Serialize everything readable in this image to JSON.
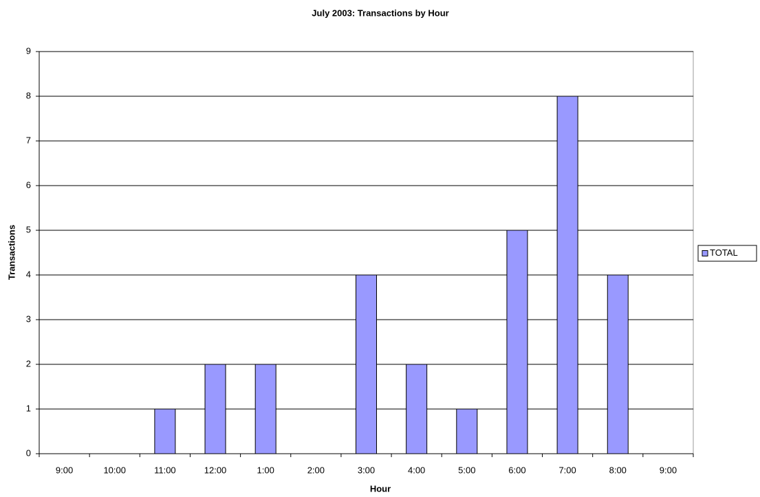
{
  "chart_data": {
    "type": "bar",
    "title": "July 2003: Transactions by Hour",
    "x_label": "Hour",
    "y_label": "Transactions",
    "categories": [
      "9:00",
      "10:00",
      "11:00",
      "12:00",
      "1:00",
      "2:00",
      "3:00",
      "4:00",
      "5:00",
      "6:00",
      "7:00",
      "8:00",
      "9:00"
    ],
    "series": [
      {
        "name": "TOTAL",
        "color": "#9999ff",
        "values": [
          0,
          0,
          1,
          2,
          2,
          0,
          4,
          2,
          1,
          5,
          8,
          4,
          0
        ]
      }
    ],
    "ylim": [
      0,
      9
    ],
    "yticks": [
      0,
      1,
      2,
      3,
      4,
      5,
      6,
      7,
      8,
      9
    ],
    "grid": true,
    "legend": "right"
  }
}
